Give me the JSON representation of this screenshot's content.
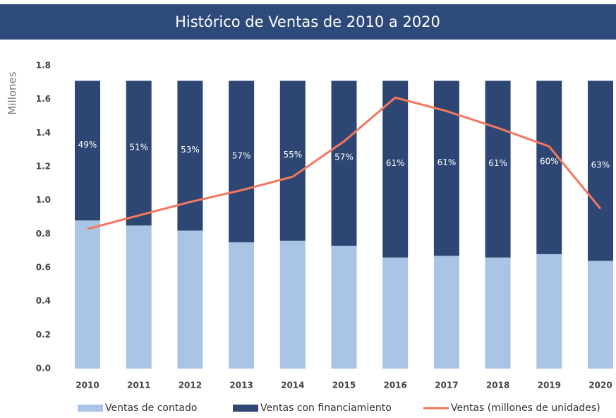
{
  "chart_data": {
    "type": "stacked_bar_line",
    "title": "Histórico de Ventas de 2010 a 2020",
    "y_label": "Millones",
    "categories": [
      "2010",
      "2011",
      "2012",
      "2013",
      "2014",
      "2015",
      "2016",
      "2017",
      "2018",
      "2019",
      "2020"
    ],
    "series": [
      {
        "name": "Ventas de contado",
        "color": "#a9c4e4",
        "type": "bar",
        "values": [
          0.88,
          0.85,
          0.82,
          0.75,
          0.76,
          0.73,
          0.66,
          0.67,
          0.66,
          0.68,
          0.64
        ]
      },
      {
        "name": "Ventas con financiamiento",
        "color": "#2e4674",
        "type": "bar",
        "values": [
          0.83,
          0.86,
          0.89,
          0.96,
          0.95,
          0.98,
          1.05,
          1.04,
          1.05,
          1.03,
          1.07
        ],
        "annotations": [
          "49%",
          "51%",
          "53%",
          "57%",
          "55%",
          "57%",
          "61%",
          "61%",
          "61%",
          "60%",
          "63%"
        ]
      },
      {
        "name": "Ventas (millones de unidades)",
        "color": "#f4775e",
        "type": "line",
        "values": [
          0.83,
          0.91,
          0.99,
          1.06,
          1.14,
          1.35,
          1.61,
          1.53,
          1.43,
          1.32,
          0.95
        ]
      }
    ],
    "ylim": [
      0,
      1.8
    ],
    "yticks": [
      {
        "value": 0,
        "label": "0.0"
      },
      0.2,
      0.4,
      0.6,
      0.8,
      {
        "value": 1,
        "label": "1.0"
      },
      1.2,
      1.4,
      1.6,
      1.8
    ],
    "grid": false,
    "legend": "bottom"
  }
}
